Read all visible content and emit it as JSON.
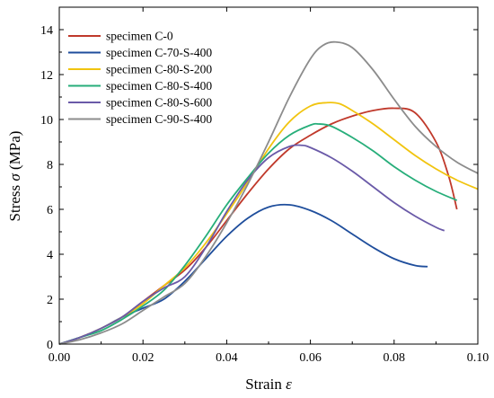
{
  "chart_data": {
    "type": "line",
    "xlabel": {
      "text": "Strain",
      "symbol": "ε"
    },
    "ylabel": {
      "text": "Stress",
      "symbol": "σ",
      "unit": "(MPa)"
    },
    "xlim": [
      0,
      0.1
    ],
    "ylim": [
      0,
      15
    ],
    "xticks": [
      0.0,
      0.02,
      0.04,
      0.06,
      0.08,
      0.1
    ],
    "xtick_labels": [
      "0.00",
      "0.02",
      "0.04",
      "0.06",
      "0.08",
      "0.10"
    ],
    "yticks": [
      0,
      2,
      4,
      6,
      8,
      10,
      12,
      14
    ],
    "ytick_labels": [
      "0",
      "2",
      "4",
      "6",
      "8",
      "10",
      "12",
      "14"
    ],
    "grid": false,
    "legend_position": "top-left",
    "series": [
      {
        "name": "specimen C-0",
        "color": "#c0392b",
        "x": [
          0,
          0.005,
          0.01,
          0.015,
          0.02,
          0.025,
          0.03,
          0.035,
          0.04,
          0.045,
          0.05,
          0.055,
          0.06,
          0.065,
          0.07,
          0.075,
          0.08,
          0.085,
          0.09,
          0.093,
          0.095
        ],
        "y": [
          0,
          0.3,
          0.7,
          1.2,
          1.9,
          2.6,
          3.3,
          4.3,
          5.5,
          6.7,
          7.8,
          8.7,
          9.3,
          9.8,
          10.15,
          10.4,
          10.5,
          10.3,
          9.0,
          7.5,
          6.0
        ]
      },
      {
        "name": "specimen C-70-S-400",
        "color": "#1f4e9c",
        "x": [
          0,
          0.005,
          0.01,
          0.015,
          0.02,
          0.025,
          0.03,
          0.035,
          0.04,
          0.045,
          0.05,
          0.055,
          0.06,
          0.065,
          0.07,
          0.075,
          0.08,
          0.085,
          0.088
        ],
        "y": [
          0,
          0.3,
          0.7,
          1.2,
          1.6,
          2.0,
          2.8,
          3.8,
          4.8,
          5.6,
          6.1,
          6.2,
          5.95,
          5.5,
          4.9,
          4.3,
          3.8,
          3.5,
          3.45
        ]
      },
      {
        "name": "specimen C-80-S-200",
        "color": "#f1c40f",
        "x": [
          0,
          0.005,
          0.01,
          0.015,
          0.02,
          0.025,
          0.03,
          0.035,
          0.04,
          0.045,
          0.05,
          0.055,
          0.06,
          0.064,
          0.067,
          0.07,
          0.075,
          0.08,
          0.085,
          0.09,
          0.095,
          0.1
        ],
        "y": [
          0,
          0.3,
          0.7,
          1.2,
          1.8,
          2.6,
          3.4,
          4.5,
          5.8,
          7.2,
          8.7,
          9.9,
          10.6,
          10.75,
          10.7,
          10.4,
          9.8,
          9.1,
          8.4,
          7.8,
          7.3,
          6.9
        ]
      },
      {
        "name": "specimen C-80-S-400",
        "color": "#27ae7a",
        "x": [
          0,
          0.005,
          0.01,
          0.015,
          0.02,
          0.025,
          0.03,
          0.035,
          0.04,
          0.045,
          0.05,
          0.055,
          0.06,
          0.062,
          0.065,
          0.07,
          0.075,
          0.08,
          0.085,
          0.09,
          0.095
        ],
        "y": [
          0,
          0.3,
          0.6,
          1.1,
          1.7,
          2.4,
          3.5,
          4.8,
          6.2,
          7.4,
          8.5,
          9.3,
          9.75,
          9.8,
          9.7,
          9.2,
          8.6,
          7.9,
          7.3,
          6.8,
          6.4
        ]
      },
      {
        "name": "specimen C-80-S-600",
        "color": "#6a5aa8",
        "x": [
          0,
          0.005,
          0.01,
          0.015,
          0.02,
          0.025,
          0.03,
          0.035,
          0.04,
          0.045,
          0.05,
          0.055,
          0.058,
          0.06,
          0.065,
          0.07,
          0.075,
          0.08,
          0.085,
          0.09,
          0.092
        ],
        "y": [
          0,
          0.3,
          0.7,
          1.2,
          1.9,
          2.5,
          3.0,
          4.3,
          5.9,
          7.3,
          8.3,
          8.8,
          8.85,
          8.75,
          8.3,
          7.7,
          7.0,
          6.3,
          5.7,
          5.2,
          5.05
        ]
      },
      {
        "name": "specimen C-90-S-400",
        "color": "#8c8c8c",
        "x": [
          0,
          0.005,
          0.01,
          0.015,
          0.02,
          0.025,
          0.03,
          0.035,
          0.04,
          0.045,
          0.05,
          0.055,
          0.06,
          0.063,
          0.066,
          0.07,
          0.075,
          0.08,
          0.085,
          0.09,
          0.095,
          0.1
        ],
        "y": [
          0,
          0.2,
          0.5,
          0.9,
          1.5,
          2.1,
          2.7,
          3.9,
          5.4,
          7.1,
          9.0,
          11.0,
          12.7,
          13.3,
          13.45,
          13.2,
          12.2,
          10.9,
          9.7,
          8.8,
          8.1,
          7.6
        ]
      }
    ]
  }
}
